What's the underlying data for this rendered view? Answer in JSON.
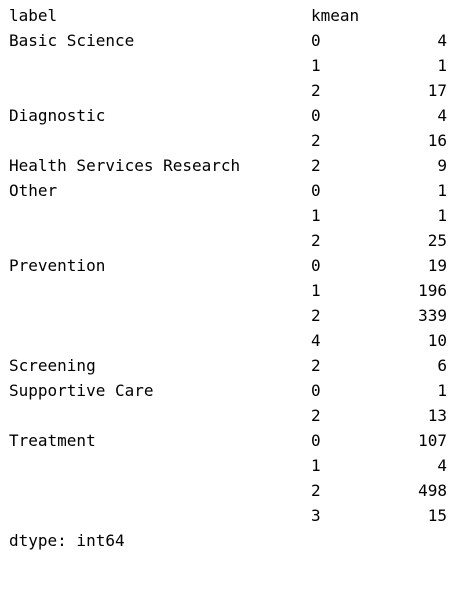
{
  "header": {
    "label_col": "label",
    "kmean_col": "kmean"
  },
  "rows": [
    {
      "label": "Basic Science",
      "kmean": "0",
      "value": "4"
    },
    {
      "label": "",
      "kmean": "1",
      "value": "1"
    },
    {
      "label": "",
      "kmean": "2",
      "value": "17"
    },
    {
      "label": "Diagnostic",
      "kmean": "0",
      "value": "4"
    },
    {
      "label": "",
      "kmean": "2",
      "value": "16"
    },
    {
      "label": "Health Services Research",
      "kmean": "2",
      "value": "9"
    },
    {
      "label": "Other",
      "kmean": "0",
      "value": "1"
    },
    {
      "label": "",
      "kmean": "1",
      "value": "1"
    },
    {
      "label": "",
      "kmean": "2",
      "value": "25"
    },
    {
      "label": "Prevention",
      "kmean": "0",
      "value": "19"
    },
    {
      "label": "",
      "kmean": "1",
      "value": "196"
    },
    {
      "label": "",
      "kmean": "2",
      "value": "339"
    },
    {
      "label": "",
      "kmean": "4",
      "value": "10"
    },
    {
      "label": "Screening",
      "kmean": "2",
      "value": "6"
    },
    {
      "label": "Supportive Care",
      "kmean": "0",
      "value": "1"
    },
    {
      "label": "",
      "kmean": "2",
      "value": "13"
    },
    {
      "label": "Treatment",
      "kmean": "0",
      "value": "107"
    },
    {
      "label": "",
      "kmean": "1",
      "value": "4"
    },
    {
      "label": "",
      "kmean": "2",
      "value": "498"
    },
    {
      "label": "",
      "kmean": "3",
      "value": "15"
    }
  ],
  "footer": {
    "dtype": "dtype: int64"
  }
}
